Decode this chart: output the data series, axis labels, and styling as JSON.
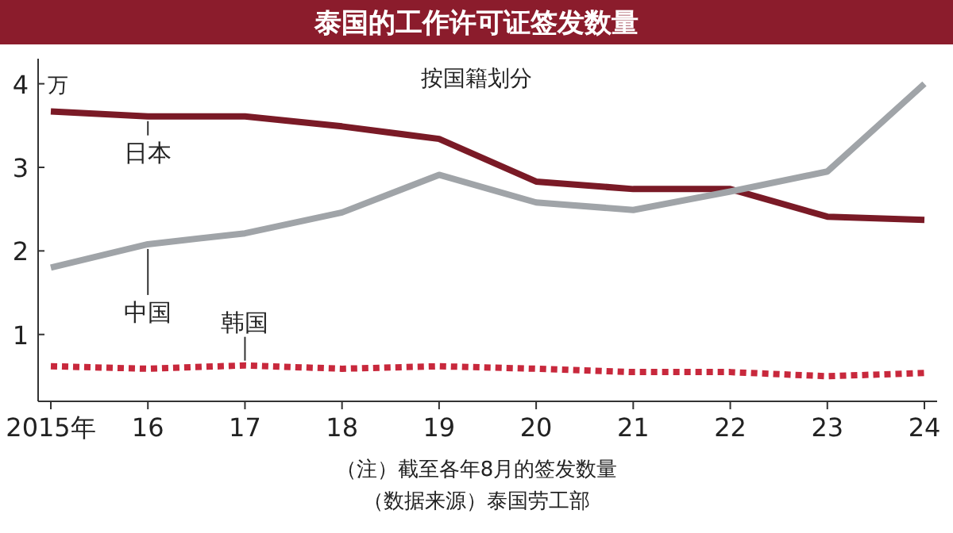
{
  "chart_data": {
    "type": "line",
    "title": "泰国的工作许可证签发数量",
    "subtitle": "按国籍划分",
    "ylabel": "万",
    "categories": [
      "2015年",
      "16",
      "17",
      "18",
      "19",
      "20",
      "21",
      "22",
      "23",
      "24"
    ],
    "ylim": [
      0.2,
      4.3
    ],
    "yticks": [
      1,
      2,
      3,
      4
    ],
    "grid": false,
    "legend": false,
    "series": [
      {
        "name": "日本",
        "color": "#7a1a26",
        "line_style": "solid",
        "values": [
          3.67,
          3.61,
          3.61,
          3.49,
          3.34,
          2.83,
          2.74,
          2.74,
          2.41,
          2.37
        ]
      },
      {
        "name": "中国",
        "color": "#a0a4a8",
        "line_style": "solid",
        "values": [
          1.8,
          2.08,
          2.21,
          2.46,
          2.91,
          2.58,
          2.49,
          2.71,
          2.95,
          4.0
        ]
      },
      {
        "name": "韩国",
        "color": "#c8283c",
        "line_style": "dotted",
        "values": [
          0.62,
          0.59,
          0.63,
          0.59,
          0.62,
          0.59,
          0.55,
          0.55,
          0.5,
          0.54
        ]
      }
    ],
    "annotations": [
      "（注）截至各年8月的签发数量",
      "（数据来源）泰国劳工部"
    ]
  }
}
